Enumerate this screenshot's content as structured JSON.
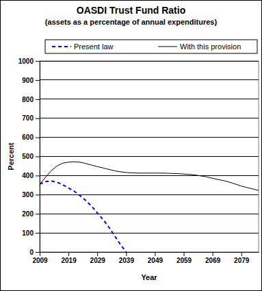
{
  "chart_data": {
    "type": "line",
    "title": "OASDI Trust Fund Ratio",
    "subtitle": "(assets as a percentage of annual expenditures)",
    "x_label": "Year",
    "y_label": "Percent",
    "x": [
      2009,
      2011,
      2013,
      2015,
      2017,
      2019,
      2021,
      2023,
      2025,
      2027,
      2029,
      2031,
      2033,
      2035,
      2037,
      2039,
      2041,
      2043,
      2045,
      2047,
      2049,
      2051,
      2053,
      2055,
      2057,
      2059,
      2061,
      2063,
      2065,
      2067,
      2069,
      2071,
      2073,
      2075,
      2077,
      2079,
      2081,
      2083,
      2085
    ],
    "series": [
      {
        "name": "Present law",
        "color": "#0000ff",
        "line_style": "dashed",
        "values": [
          355,
          368,
          372,
          365,
          352,
          335,
          318,
          295,
          270,
          240,
          205,
          170,
          130,
          85,
          40,
          0,
          null,
          null,
          null,
          null,
          null,
          null,
          null,
          null,
          null,
          null,
          null,
          null,
          null,
          null,
          null,
          null,
          null,
          null,
          null,
          null,
          null,
          null,
          null
        ]
      },
      {
        "name": "With this provision",
        "color": "#000000",
        "line_style": "solid",
        "values": [
          355,
          390,
          425,
          450,
          465,
          470,
          472,
          470,
          463,
          455,
          447,
          440,
          432,
          425,
          420,
          416,
          414,
          413,
          413,
          413,
          413,
          413,
          412,
          411,
          410,
          408,
          406,
          403,
          398,
          393,
          386,
          379,
          373,
          365,
          355,
          345,
          337,
          330,
          322
        ]
      }
    ],
    "xlim": [
      2009,
      2085
    ],
    "xticks": [
      2009,
      2019,
      2029,
      2039,
      2049,
      2059,
      2069,
      2079
    ],
    "ylim": [
      0,
      1000
    ],
    "yticks": [
      0,
      100,
      200,
      300,
      400,
      500,
      600,
      700,
      800,
      900,
      1000
    ],
    "grid": true,
    "legend": "top"
  }
}
